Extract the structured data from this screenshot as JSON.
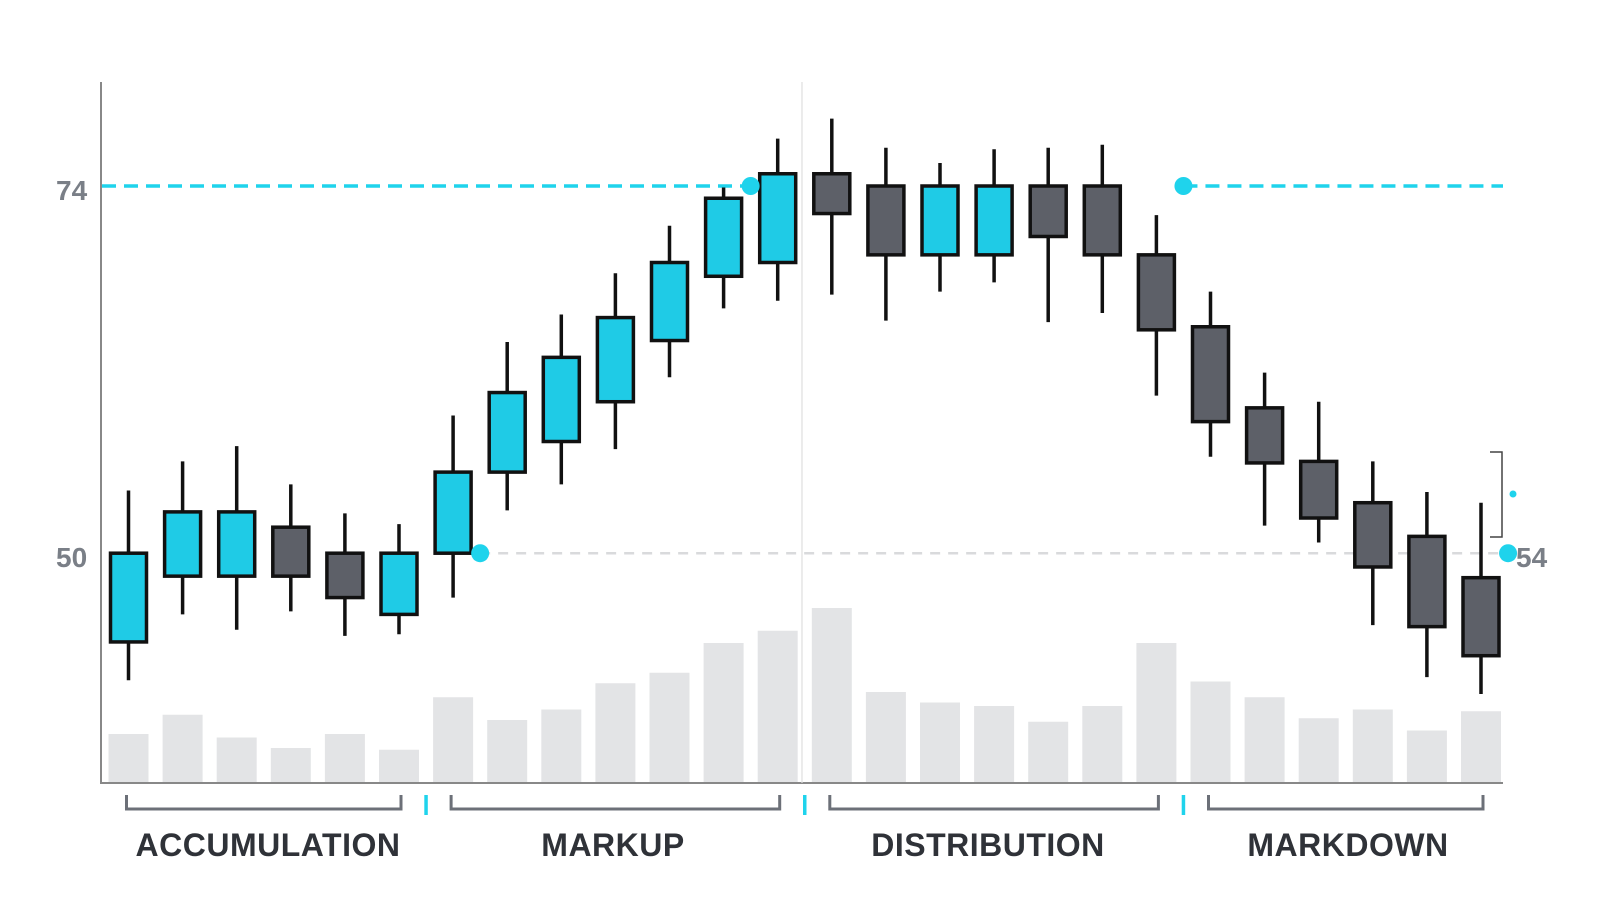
{
  "chart_data": {
    "type": "candlestick",
    "title": "",
    "xlabel": "",
    "ylabel": "",
    "y_tick_labels": [
      "74",
      "50"
    ],
    "y_ticks": [
      74,
      50
    ],
    "right_label": "54",
    "ylim": [
      36,
      81
    ],
    "volume_unit_max": 100,
    "colors": {
      "bull": "#1fcbe6",
      "bear": "#5d6068",
      "outline": "#111111",
      "volume": "#e3e4e6",
      "accent": "#1fd3ec",
      "support_line": "#d9dadc",
      "axis": "#888888"
    },
    "candles": [
      {
        "open": 44.2,
        "close": 50.0,
        "high": 54.1,
        "low": 41.7,
        "bull": true,
        "volume": 28
      },
      {
        "open": 48.5,
        "close": 52.7,
        "high": 56.0,
        "low": 46.0,
        "bull": true,
        "volume": 39
      },
      {
        "open": 48.5,
        "close": 52.7,
        "high": 57.0,
        "low": 45.0,
        "bull": true,
        "volume": 26
      },
      {
        "open": 51.7,
        "close": 48.5,
        "high": 54.5,
        "low": 46.2,
        "bull": false,
        "volume": 20
      },
      {
        "open": 50.0,
        "close": 47.1,
        "high": 52.6,
        "low": 44.6,
        "bull": false,
        "volume": 28
      },
      {
        "open": 46.0,
        "close": 50.0,
        "high": 51.9,
        "low": 44.7,
        "bull": true,
        "volume": 19
      },
      {
        "open": 50.0,
        "close": 55.3,
        "high": 59.0,
        "low": 47.1,
        "bull": true,
        "volume": 49
      },
      {
        "open": 55.3,
        "close": 60.5,
        "high": 63.8,
        "low": 52.8,
        "bull": true,
        "volume": 36
      },
      {
        "open": 57.3,
        "close": 62.8,
        "high": 65.6,
        "low": 54.5,
        "bull": true,
        "volume": 42
      },
      {
        "open": 59.9,
        "close": 65.4,
        "high": 68.3,
        "low": 56.8,
        "bull": true,
        "volume": 57
      },
      {
        "open": 63.9,
        "close": 69.0,
        "high": 71.4,
        "low": 61.5,
        "bull": true,
        "volume": 63
      },
      {
        "open": 68.1,
        "close": 73.2,
        "high": 73.9,
        "low": 66.0,
        "bull": true,
        "volume": 80
      },
      {
        "open": 69.0,
        "close": 74.8,
        "high": 77.1,
        "low": 66.5,
        "bull": true,
        "volume": 87
      },
      {
        "open": 74.8,
        "close": 72.2,
        "high": 78.4,
        "low": 66.9,
        "bull": false,
        "volume": 100
      },
      {
        "open": 74.0,
        "close": 69.5,
        "high": 76.5,
        "low": 65.2,
        "bull": false,
        "volume": 52
      },
      {
        "open": 69.5,
        "close": 74.0,
        "high": 75.5,
        "low": 67.1,
        "bull": true,
        "volume": 46
      },
      {
        "open": 69.5,
        "close": 74.0,
        "high": 76.4,
        "low": 67.7,
        "bull": true,
        "volume": 44
      },
      {
        "open": 74.0,
        "close": 70.7,
        "high": 76.5,
        "low": 65.1,
        "bull": false,
        "volume": 35
      },
      {
        "open": 74.0,
        "close": 69.5,
        "high": 76.7,
        "low": 65.7,
        "bull": false,
        "volume": 44
      },
      {
        "open": 69.5,
        "close": 64.6,
        "high": 72.1,
        "low": 60.3,
        "bull": false,
        "volume": 80
      },
      {
        "open": 64.8,
        "close": 58.6,
        "high": 67.1,
        "low": 56.3,
        "bull": false,
        "volume": 58
      },
      {
        "open": 59.5,
        "close": 55.9,
        "high": 61.8,
        "low": 51.8,
        "bull": false,
        "volume": 49
      },
      {
        "open": 56.0,
        "close": 52.3,
        "high": 59.9,
        "low": 50.7,
        "bull": false,
        "volume": 37
      },
      {
        "open": 53.3,
        "close": 49.1,
        "high": 56.0,
        "low": 45.3,
        "bull": false,
        "volume": 42
      },
      {
        "open": 51.1,
        "close": 45.2,
        "high": 54.0,
        "low": 41.9,
        "bull": false,
        "volume": 30
      },
      {
        "open": 48.4,
        "close": 43.3,
        "high": 53.3,
        "low": 40.8,
        "bull": false,
        "volume": 41
      }
    ],
    "levels": [
      {
        "value": 74,
        "style": "dashed-accent",
        "segments": [
          [
            0,
            11.5
          ],
          [
            19.5,
            26
          ]
        ],
        "markers": [
          11.5,
          19.5
        ]
      },
      {
        "value": 50,
        "style": "dashed-light",
        "segments": [
          [
            6.5,
            26
          ]
        ],
        "markers": [
          6.5,
          25.5
        ]
      }
    ],
    "phases": [
      {
        "label": "ACCUMULATION",
        "start": 0,
        "end": 5
      },
      {
        "label": "MARKUP",
        "start": 6,
        "end": 12
      },
      {
        "label": "DISTRIBUTION",
        "start": 13,
        "end": 19
      },
      {
        "label": "MARKDOWN",
        "start": 20,
        "end": 25
      }
    ]
  }
}
